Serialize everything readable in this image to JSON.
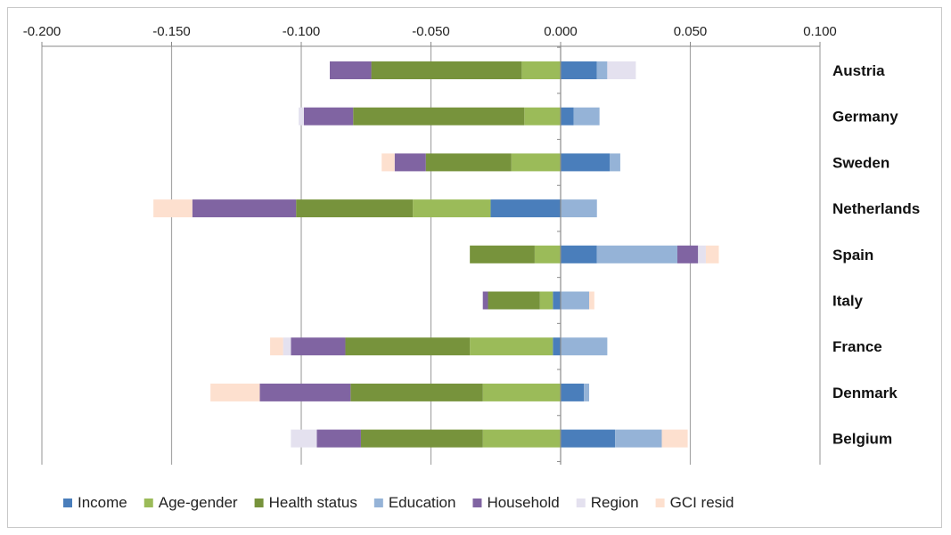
{
  "chart_data": {
    "type": "bar",
    "orientation": "horizontal",
    "stacked": true,
    "x_axis_position": "top",
    "xlim": [
      -0.2,
      0.1
    ],
    "x_ticks": [
      "-0.200",
      "-0.150",
      "-0.100",
      "-0.050",
      "0.000",
      "0.050",
      "0.100"
    ],
    "x_tick_values": [
      -0.2,
      -0.15,
      -0.1,
      -0.05,
      0.0,
      0.05,
      0.1
    ],
    "grid": "vertical major gridlines",
    "legend_position": "bottom",
    "categories": [
      "Austria",
      "Germany",
      "Sweden",
      "Netherlands",
      "Spain",
      "Italy",
      "France",
      "Denmark",
      "Belgium"
    ],
    "series": [
      {
        "name": "Income",
        "color": "#4a7ebb",
        "values": [
          0.014,
          0.005,
          0.019,
          -0.027,
          0.014,
          -0.003,
          -0.003,
          0.009,
          0.021
        ]
      },
      {
        "name": "Age-gender",
        "color": "#9bbb59",
        "values": [
          -0.015,
          -0.014,
          -0.019,
          -0.03,
          -0.01,
          -0.005,
          -0.032,
          -0.03,
          -0.03
        ]
      },
      {
        "name": "Health status",
        "color": "#77933c",
        "values": [
          -0.058,
          -0.066,
          -0.033,
          -0.045,
          -0.025,
          -0.02,
          -0.048,
          -0.051,
          -0.047
        ]
      },
      {
        "name": "Education",
        "color": "#95b3d7",
        "values": [
          0.004,
          0.01,
          0.004,
          0.014,
          0.031,
          0.011,
          0.018,
          0.002,
          0.018
        ]
      },
      {
        "name": "Household",
        "color": "#8064a2",
        "values": [
          -0.016,
          -0.019,
          -0.012,
          -0.04,
          0.008,
          -0.002,
          -0.021,
          -0.035,
          -0.017
        ]
      },
      {
        "name": "Region",
        "color": "#e4e1ef",
        "values": [
          0.011,
          -0.002,
          0.0,
          0.0,
          0.003,
          0.0,
          -0.003,
          0.0,
          -0.01
        ]
      },
      {
        "name": "GCI resid",
        "color": "#fde0cf",
        "values": [
          0.0,
          0.0,
          -0.005,
          -0.015,
          0.005,
          0.002,
          -0.005,
          -0.019,
          0.01
        ]
      }
    ]
  }
}
